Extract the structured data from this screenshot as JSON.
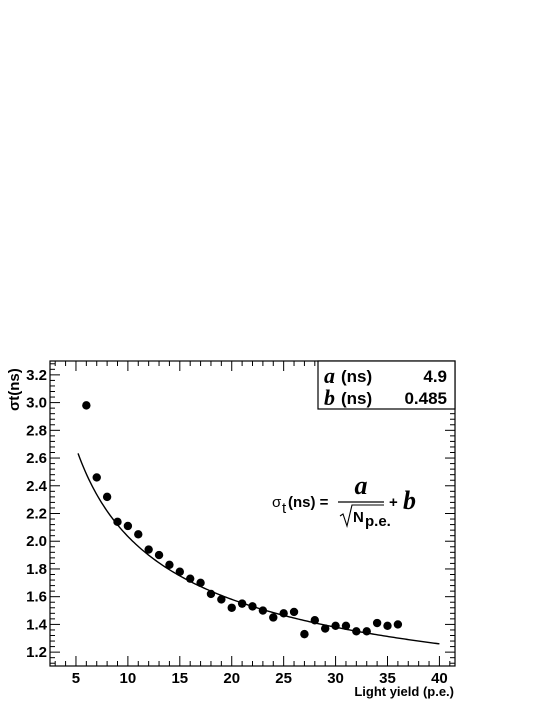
{
  "chart_data": {
    "type": "scatter",
    "xlabel": "Light yield (p.e.)",
    "ylabel": "σt(ns)",
    "xlim": [
      2.5,
      41.5
    ],
    "ylim": [
      1.1,
      3.3
    ],
    "x_ticks": [
      "5",
      "10",
      "15",
      "20",
      "25",
      "30",
      "35",
      "40"
    ],
    "y_ticks": [
      "1.2",
      "1.4",
      "1.6",
      "1.8",
      "2.0",
      "2.2",
      "2.4",
      "2.6",
      "2.8",
      "3.0",
      "3.2"
    ],
    "x_tick_values": [
      5,
      10,
      15,
      20,
      25,
      30,
      35,
      40
    ],
    "y_tick_values": [
      1.2,
      1.4,
      1.6,
      1.8,
      2.0,
      2.2,
      2.4,
      2.6,
      2.8,
      3.0,
      3.2
    ],
    "series": [
      {
        "points": [
          [
            6,
            2.98
          ],
          [
            7,
            2.46
          ],
          [
            8,
            2.32
          ],
          [
            9,
            2.14
          ],
          [
            10,
            2.11
          ],
          [
            11,
            2.05
          ],
          [
            12,
            1.94
          ],
          [
            13,
            1.9
          ],
          [
            14,
            1.83
          ],
          [
            15,
            1.78
          ],
          [
            16,
            1.73
          ],
          [
            17,
            1.7
          ],
          [
            18,
            1.62
          ],
          [
            19,
            1.58
          ],
          [
            20,
            1.52
          ],
          [
            21,
            1.55
          ],
          [
            22,
            1.53
          ],
          [
            23,
            1.5
          ],
          [
            24,
            1.45
          ],
          [
            25,
            1.48
          ],
          [
            26,
            1.49
          ],
          [
            27,
            1.33
          ],
          [
            28,
            1.43
          ],
          [
            29,
            1.37
          ],
          [
            30,
            1.39
          ],
          [
            31,
            1.39
          ],
          [
            32,
            1.35
          ],
          [
            33,
            1.35
          ],
          [
            34,
            1.41
          ],
          [
            35,
            1.39
          ],
          [
            36,
            1.4
          ]
        ]
      }
    ],
    "fit": {
      "a": 4.9,
      "b": 0.485,
      "x_range": [
        5.2,
        40
      ]
    },
    "stats": {
      "a_label": "a",
      "a_unit": "(ns)",
      "a_value": "4.9",
      "b_label": "b",
      "b_unit": "(ns)",
      "b_value": "0.485"
    },
    "formula": {
      "lhs": "σ",
      "lhs_sub": "t",
      "lhs_unit": "(ns) =",
      "numerator": "a",
      "denominator": "N",
      "denominator_sub": "p.e.",
      "plus": "+",
      "b": "b"
    }
  }
}
